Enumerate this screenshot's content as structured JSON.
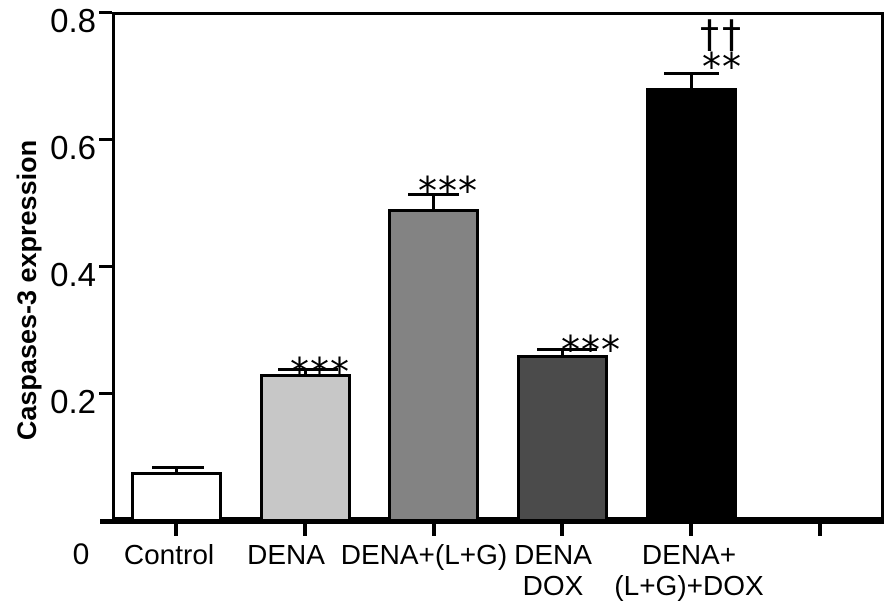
{
  "figure": {
    "background": "#ffffff",
    "text_color": "#000000",
    "axis_color": "#000000"
  },
  "chart_data": {
    "type": "bar",
    "title": "",
    "xlabel": "",
    "ylabel": "Caspases-3 expression",
    "ylim": [
      0,
      0.8
    ],
    "yticks": [
      0,
      0.2,
      0.4,
      0.6,
      0.8
    ],
    "ytick_labels": [
      "0",
      "0.2",
      "0.4",
      "0.6",
      "0.8"
    ],
    "grid": false,
    "legend": null,
    "frame": "full-box",
    "categories": [
      "Control",
      "DENA",
      "DENA+(L+G)",
      "DENA\nDOX",
      "DENA+\n(L+G)+DOX"
    ],
    "values": [
      0.075,
      0.23,
      0.49,
      0.26,
      0.68
    ],
    "errors_plus": [
      0.009,
      0.008,
      0.024,
      0.009,
      0.024
    ],
    "bar_colors": [
      "#ffffff",
      "#c7c7c7",
      "#838383",
      "#4b4b4b",
      "#000000"
    ],
    "bar_border_color": "#000000",
    "significance_annotations": [
      {
        "category": "DENA",
        "text": "***",
        "placement": "on-error-cap"
      },
      {
        "category": "DENA+(L+G)",
        "text": "***",
        "placement": "above-error-cap"
      },
      {
        "category": "DENA\nDOX",
        "text": "***",
        "placement": "on-error-cap"
      },
      {
        "category": "DENA+\n(L+G)+DOX",
        "text": "††",
        "placement": "above"
      },
      {
        "category": "DENA+\n(L+G)+DOX",
        "text": "**",
        "placement": "above-error-cap"
      }
    ]
  }
}
